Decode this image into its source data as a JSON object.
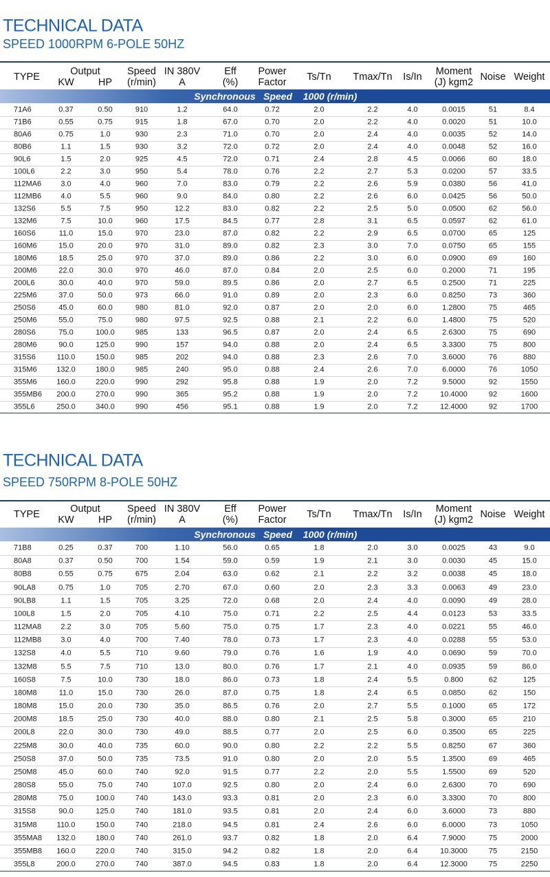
{
  "tables": [
    {
      "title": "TECHNICAL DATA",
      "subtitle": "SPEED 1000RPM 6-POLE 50HZ",
      "header": [
        [
          "TYPE"
        ],
        [
          "Output"
        ],
        [
          "KW"
        ],
        [
          "HP"
        ],
        [
          "Speed",
          "(r/min)"
        ],
        [
          "IN 380V",
          "A"
        ],
        [
          "Eff",
          "(%)"
        ],
        [
          "Power",
          "Factor"
        ],
        [
          "Ts/Tn"
        ],
        [
          "Tmax/Tn"
        ],
        [
          "Is/In"
        ],
        [
          "Moment",
          "(J) kgm2"
        ],
        [
          "Noise"
        ],
        [
          "Weight"
        ]
      ],
      "band": [
        "Synchronous",
        "Speed",
        "1000 (r/min)"
      ],
      "rows": [
        [
          "71A6",
          "0.37",
          "0.50",
          "910",
          "1.2",
          "64.0",
          "0.72",
          "2.0",
          "2.2",
          "4.0",
          "0.0015",
          "51",
          "8.4"
        ],
        [
          "71B6",
          "0.55",
          "0.75",
          "915",
          "1.8",
          "67.0",
          "0.70",
          "2.0",
          "2.2",
          "4.0",
          "0.0020",
          "51",
          "10.0"
        ],
        [
          "80A6",
          "0.75",
          "1.0",
          "930",
          "2.3",
          "71.0",
          "0.70",
          "2.0",
          "2.4",
          "4.0",
          "0.0035",
          "52",
          "14.0"
        ],
        [
          "80B6",
          "1.1",
          "1.5",
          "930",
          "3.2",
          "72.0",
          "0.72",
          "2.0",
          "2.4",
          "4.0",
          "0.0048",
          "52",
          "16.0"
        ],
        [
          "90L6",
          "1.5",
          "2.0",
          "925",
          "4.5",
          "72.0",
          "0.71",
          "2.4",
          "2.8",
          "4.5",
          "0.0066",
          "60",
          "18.0"
        ],
        [
          "100L6",
          "2.2",
          "3.0",
          "950",
          "5.4",
          "78.0",
          "0.76",
          "2.2",
          "2.7",
          "5.3",
          "0.0200",
          "57",
          "33.5"
        ],
        [
          "112MA6",
          "3.0",
          "4.0",
          "960",
          "7.0",
          "83.0",
          "0.79",
          "2.2",
          "2.6",
          "5.9",
          "0.0380",
          "56",
          "41.0"
        ],
        [
          "112MB6",
          "4.0",
          "5.5",
          "960",
          "9.0",
          "84.0",
          "0.80",
          "2.2",
          "2.6",
          "6.0",
          "0.0425",
          "56",
          "50.0"
        ],
        [
          "132S6",
          "5.5",
          "7.5",
          "950",
          "12.2",
          "83.0",
          "0.82",
          "2.2",
          "2.5",
          "5.0",
          "0.0500",
          "62",
          "56.0"
        ],
        [
          "132M6",
          "7.5",
          "10.0",
          "960",
          "17.5",
          "84.5",
          "0.77",
          "2.8",
          "3.1",
          "6.5",
          "0.0597",
          "62",
          "61.0"
        ],
        [
          "160S6",
          "11.0",
          "15.0",
          "970",
          "23.0",
          "87.0",
          "0.82",
          "2.2",
          "2.9",
          "6.5",
          "0.0700",
          "65",
          "125"
        ],
        [
          "160M6",
          "15.0",
          "20.0",
          "970",
          "31.0",
          "89.0",
          "0.82",
          "2.3",
          "3.0",
          "7.0",
          "0.0750",
          "65",
          "155"
        ],
        [
          "180M6",
          "18.5",
          "25.0",
          "970",
          "37.0",
          "89.0",
          "0.86",
          "2.2",
          "3.0",
          "6.0",
          "0.0900",
          "69",
          "160"
        ],
        [
          "200M6",
          "22.0",
          "30.0",
          "970",
          "46.0",
          "87.0",
          "0.84",
          "2.0",
          "2.5",
          "6.0",
          "0.2000",
          "71",
          "195"
        ],
        [
          "200L6",
          "30.0",
          "40.0",
          "970",
          "59.0",
          "89.5",
          "0.86",
          "2.0",
          "2.7",
          "6.5",
          "0.2500",
          "71",
          "225"
        ],
        [
          "225M6",
          "37.0",
          "50.0",
          "973",
          "66.0",
          "91.0",
          "0.89",
          "2.0",
          "2.3",
          "6.0",
          "0.8250",
          "73",
          "360"
        ],
        [
          "250S6",
          "45.0",
          "60.0",
          "980",
          "81.0",
          "92.0",
          "0.87",
          "2.0",
          "2.0",
          "6.0",
          "1.2800",
          "75",
          "465"
        ],
        [
          "250M6",
          "55.0",
          "75.0",
          "980",
          "97.5",
          "92.5",
          "0.88",
          "2.1",
          "2.2",
          "6.0",
          "1.4800",
          "75",
          "520"
        ],
        [
          "280S6",
          "75.0",
          "100.0",
          "985",
          "133",
          "96.5",
          "0.87",
          "2.0",
          "2.4",
          "6.5",
          "2.6300",
          "75",
          "690"
        ],
        [
          "280M6",
          "90.0",
          "125.0",
          "990",
          "157",
          "94.0",
          "0.88",
          "2.0",
          "2.4",
          "6.5",
          "3.3300",
          "75",
          "800"
        ],
        [
          "315S6",
          "110.0",
          "150.0",
          "985",
          "202",
          "94.0",
          "0.88",
          "2.3",
          "2.6",
          "7.0",
          "3.6000",
          "76",
          "880"
        ],
        [
          "315M6",
          "132.0",
          "180.0",
          "985",
          "240",
          "95.0",
          "0.88",
          "2.4",
          "2.6",
          "7.0",
          "6.0000",
          "76",
          "1050"
        ],
        [
          "355M6",
          "160.0",
          "220.0",
          "990",
          "292",
          "95.8",
          "0.88",
          "1.9",
          "2.0",
          "7.2",
          "9.5000",
          "92",
          "1550"
        ],
        [
          "355MB6",
          "200.0",
          "270.0",
          "990",
          "365",
          "95.2",
          "0.88",
          "1.9",
          "2.0",
          "7.2",
          "10.4000",
          "92",
          "1600"
        ],
        [
          "355L6",
          "250.0",
          "340.0",
          "990",
          "456",
          "95.1",
          "0.88",
          "1.9",
          "2.0",
          "7.2",
          "12.4000",
          "92",
          "1700"
        ]
      ]
    },
    {
      "title": "TECHNICAL DATA",
      "subtitle": "SPEED 750RPM 8-POLE 50HZ",
      "header": [
        [
          "TYPE"
        ],
        [
          "Output"
        ],
        [
          "KW"
        ],
        [
          "HP"
        ],
        [
          "Speed",
          "(r/min)"
        ],
        [
          "IN 380V",
          "A"
        ],
        [
          "Eff",
          "(%)"
        ],
        [
          "Power",
          "Factor"
        ],
        [
          "Ts/Tn"
        ],
        [
          "Tmax/Tn"
        ],
        [
          "Is/In"
        ],
        [
          "Moment",
          "(J) kgm2"
        ],
        [
          "Noise"
        ],
        [
          "Weight"
        ]
      ],
      "band": [
        "Synchronous",
        "Speed",
        "1000 (r/min)"
      ],
      "rows": [
        [
          "71B8",
          "0.25",
          "0.37",
          "700",
          "1.10",
          "56.0",
          "0.65",
          "1.8",
          "2.0",
          "3.0",
          "0.0025",
          "43",
          "9.0"
        ],
        [
          "80A8",
          "0.37",
          "0.50",
          "700",
          "1.54",
          "59.0",
          "0.59",
          "1.9",
          "2.1",
          "3.0",
          "0.0030",
          "45",
          "15.0"
        ],
        [
          "80B8",
          "0.55",
          "0.75",
          "675",
          "2.04",
          "63.0",
          "0.62",
          "2.1",
          "2.2",
          "3.2",
          "0.0038",
          "45",
          "18.0"
        ],
        [
          "90LA8",
          "0.75",
          "1.0",
          "705",
          "2.70",
          "67.0",
          "0.60",
          "2.0",
          "2.3",
          "3.3",
          "0.0063",
          "49",
          "23.0"
        ],
        [
          "90LB8",
          "1.1",
          "1.5",
          "705",
          "3.25",
          "72.0",
          "0.68",
          "2.0",
          "2.4",
          "4.0",
          "0.0090",
          "49",
          "28.0"
        ],
        [
          "100L8",
          "1.5",
          "2.0",
          "705",
          "4.10",
          "75.0",
          "0.71",
          "2.2",
          "2.5",
          "4.4",
          "0.0123",
          "53",
          "33.5"
        ],
        [
          "112MA8",
          "2.2",
          "3.0",
          "705",
          "5.60",
          "75.0",
          "0.75",
          "1.7",
          "2.3",
          "4.0",
          "0.0221",
          "55",
          "46.0"
        ],
        [
          "112MB8",
          "3.0",
          "4.0",
          "700",
          "7.40",
          "78.0",
          "0.73",
          "1.7",
          "2.3",
          "4.0",
          "0.0288",
          "55",
          "53.0"
        ],
        [
          "132S8",
          "4.0",
          "5.5",
          "710",
          "9.60",
          "79.0",
          "0.76",
          "1.6",
          "1.9",
          "4.0",
          "0.0690",
          "59",
          "70.0"
        ],
        [
          "132M8",
          "5.5",
          "7.5",
          "710",
          "13.0",
          "80.0",
          "0.76",
          "1.7",
          "2.1",
          "4.0",
          "0.0935",
          "59",
          "86.0"
        ],
        [
          "160S8",
          "7.5",
          "10.0",
          "730",
          "18.0",
          "86.0",
          "0.73",
          "1.8",
          "2.4",
          "5.5",
          "0.800",
          "62",
          "125"
        ],
        [
          "180M8",
          "11.0",
          "15.0",
          "730",
          "26.0",
          "87.0",
          "0.75",
          "1.8",
          "2.4",
          "6.5",
          "0.0850",
          "62",
          "150"
        ],
        [
          "180M8",
          "15.0",
          "20.0",
          "730",
          "35.0",
          "86.5",
          "0.76",
          "2.0",
          "2.7",
          "5.5",
          "0.1000",
          "65",
          "172"
        ],
        [
          "200M8",
          "18.5",
          "25.0",
          "730",
          "40.0",
          "88.0",
          "0.80",
          "2.1",
          "2.5",
          "5.8",
          "0.3000",
          "65",
          "210"
        ],
        [
          "200L8",
          "22.0",
          "30.0",
          "730",
          "49.0",
          "88.5",
          "0.77",
          "2.0",
          "2.5",
          "6.0",
          "0.3500",
          "65",
          "225"
        ],
        [
          "225M8",
          "30.0",
          "40.0",
          "735",
          "60.0",
          "90.0",
          "0.80",
          "2.2",
          "2.2",
          "5.5",
          "0.8250",
          "67",
          "360"
        ],
        [
          "250S8",
          "37.0",
          "50.0",
          "735",
          "73.5",
          "91.0",
          "0.80",
          "2.0",
          "2.0",
          "5.5",
          "1.3500",
          "69",
          "465"
        ],
        [
          "250M8",
          "45.0",
          "60.0",
          "740",
          "92.0",
          "91.5",
          "0.77",
          "2.2",
          "2.0",
          "5.5",
          "1.5500",
          "69",
          "520"
        ],
        [
          "280S8",
          "55.0",
          "75.0",
          "740",
          "107.0",
          "92.5",
          "0.80",
          "2.0",
          "2.4",
          "6.0",
          "2.6300",
          "70",
          "690"
        ],
        [
          "280M8",
          "75.0",
          "100.0",
          "740",
          "143.0",
          "93.3",
          "0.81",
          "2.0",
          "2.3",
          "6.0",
          "3.3300",
          "70",
          "800"
        ],
        [
          "315S8",
          "90.0",
          "125.0",
          "740",
          "181.0",
          "93.5",
          "0.81",
          "2.0",
          "2.4",
          "6.0",
          "3.6000",
          "73",
          "880"
        ],
        [
          "315M8",
          "110.0",
          "150.0",
          "740",
          "218.0",
          "94.5",
          "0.81",
          "2.4",
          "2.6",
          "6.0",
          "6.0000",
          "73",
          "1050"
        ],
        [
          "355MA8",
          "132.0",
          "180.0",
          "740",
          "261.0",
          "93.7",
          "0.82",
          "1.8",
          "2.0",
          "6.4",
          "7.9000",
          "75",
          "2000"
        ],
        [
          "355MB8",
          "160.0",
          "220.0",
          "740",
          "315.0",
          "94.2",
          "0.82",
          "1.8",
          "2.0",
          "6.4",
          "10.3000",
          "75",
          "2150"
        ],
        [
          "355L8",
          "200.0",
          "270.0",
          "740",
          "387.0",
          "94.5",
          "0.83",
          "1.8",
          "2.0",
          "6.4",
          "12.3000",
          "75",
          "2250"
        ]
      ]
    }
  ]
}
